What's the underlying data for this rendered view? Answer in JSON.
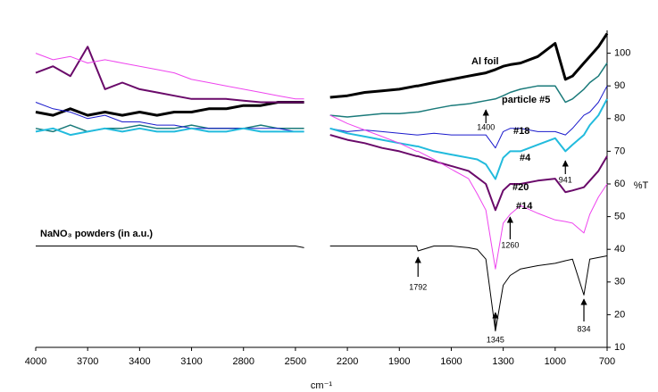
{
  "chart_data": {
    "type": "line",
    "x_label": "cm⁻¹",
    "y_label": "%T",
    "x": [
      4000,
      3900,
      3800,
      3700,
      3600,
      3500,
      3400,
      3300,
      3200,
      3100,
      3000,
      2900,
      2800,
      2700,
      2600,
      2500,
      2450,
      2400,
      2300,
      2200,
      2100,
      2000,
      1900,
      1800,
      1792,
      1700,
      1600,
      1500,
      1450,
      1400,
      1345,
      1300,
      1260,
      1200,
      1100,
      1000,
      941,
      900,
      834,
      800,
      750,
      700
    ],
    "xlim": [
      4000,
      700
    ],
    "xticks": [
      4000,
      3700,
      3400,
      3100,
      2800,
      2500,
      2200,
      1900,
      1600,
      1300,
      1000,
      700
    ],
    "ylim": [
      10,
      107
    ],
    "yticks": [
      10,
      20,
      30,
      40,
      50,
      60,
      70,
      80,
      90,
      100
    ],
    "series": [
      {
        "name": "Al foil",
        "color": "#000000",
        "values": [
          82,
          81,
          83,
          81,
          82,
          81,
          82,
          81,
          82,
          82,
          83,
          83,
          84,
          84,
          85,
          85,
          85,
          null,
          86.5,
          87,
          88,
          88.5,
          89,
          90,
          90,
          91,
          92,
          93,
          93.5,
          94,
          95,
          96,
          96.5,
          97,
          99,
          103,
          92,
          93,
          97,
          99,
          102,
          106
        ]
      },
      {
        "name": "particle #5",
        "color": "#1a7a7a",
        "values": [
          77,
          76,
          78,
          76,
          77,
          77,
          78,
          77,
          77,
          78,
          77,
          77,
          77,
          78,
          77,
          77,
          77,
          null,
          81,
          80.5,
          81,
          81.5,
          81.5,
          82,
          82,
          83,
          84,
          84.5,
          85,
          85.5,
          86,
          87,
          88,
          89,
          90,
          90,
          85,
          86,
          89,
          91,
          93,
          97
        ]
      },
      {
        "name": "#18",
        "color": "#1a1acc",
        "values": [
          85,
          83,
          82,
          80,
          81,
          79,
          79,
          78,
          78,
          77,
          77,
          77,
          77,
          77,
          77,
          76,
          76,
          null,
          77,
          76,
          76.5,
          76,
          75.5,
          75,
          75,
          75.5,
          75,
          75,
          75,
          75,
          71,
          76,
          77,
          77,
          76,
          76,
          75,
          77,
          81,
          82,
          85,
          90
        ]
      },
      {
        "name": "#4",
        "color": "#22bbdd",
        "values": [
          76,
          77,
          75,
          76,
          77,
          76,
          77,
          76,
          76,
          77,
          76,
          76,
          77,
          76,
          76,
          76,
          76,
          null,
          77,
          75.5,
          74.5,
          73.5,
          72.5,
          71.5,
          71.5,
          70,
          69,
          68,
          67.5,
          66,
          61.5,
          68,
          70,
          70,
          72,
          74,
          70,
          72,
          75,
          78,
          81,
          86
        ]
      },
      {
        "name": "#20",
        "color": "#6a0a6a",
        "values": [
          94,
          96,
          93,
          102,
          89,
          91,
          89,
          88,
          87,
          86,
          86,
          86,
          85.5,
          85,
          85,
          85,
          85,
          null,
          75,
          73.5,
          72.5,
          71,
          70,
          68.5,
          68.5,
          67,
          65.5,
          64,
          62,
          60,
          52,
          58,
          60,
          60,
          61,
          61.6,
          57.5,
          58,
          59,
          61,
          64,
          68.5
        ]
      },
      {
        "name": "#14",
        "color": "#ee44ee",
        "values": [
          100,
          98,
          99,
          97,
          98,
          97,
          96,
          95,
          94,
          92,
          91,
          90,
          89,
          88,
          87,
          86,
          86,
          null,
          81,
          78.5,
          76.5,
          74.5,
          72.5,
          70,
          70,
          67.5,
          64.5,
          61.6,
          57,
          52,
          34,
          48,
          50.7,
          53.4,
          51,
          49,
          48.5,
          48,
          45,
          50.7,
          56,
          60
        ]
      },
      {
        "name": "NaNO₃ powders (in a.u.)",
        "color": "#000000",
        "values": [
          41,
          41,
          41,
          41,
          41,
          41,
          41,
          41,
          41,
          41,
          41,
          41,
          41,
          41,
          41,
          41,
          40.5,
          null,
          41,
          41,
          41,
          41,
          41,
          41,
          39.5,
          41,
          41,
          40.5,
          40,
          37,
          15,
          29,
          32,
          34,
          35,
          35.7,
          36.5,
          37,
          26,
          37,
          37.5,
          38
        ]
      }
    ],
    "annotations": [
      "1400",
      "941",
      "1260",
      "1792",
      "1345",
      "834"
    ]
  }
}
